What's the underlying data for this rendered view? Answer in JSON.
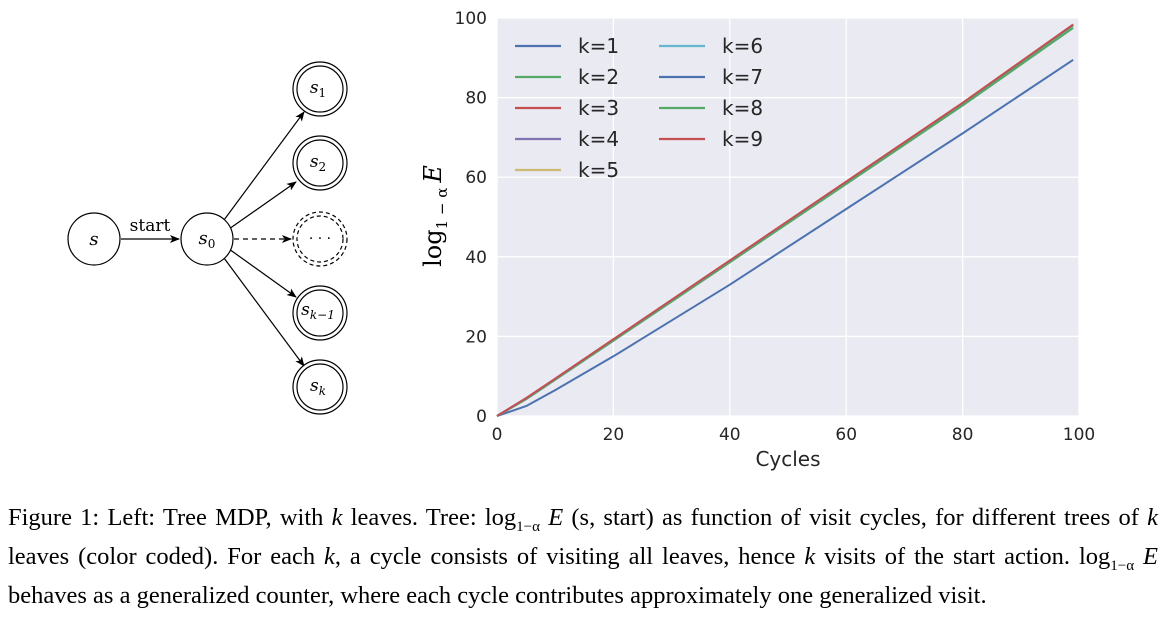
{
  "diagram": {
    "nodes": {
      "s": "s",
      "s0_base": "s",
      "s0_sub": "0",
      "s1_base": "s",
      "s1_sub": "1",
      "s2_base": "s",
      "s2_sub": "2",
      "dots": "· · ·",
      "sk1_base": "s",
      "sk1_sub": "k−1",
      "sk_base": "s",
      "sk_sub": "k"
    },
    "edge_label": "start"
  },
  "chart": {
    "xlabel": "Cycles",
    "ylabel_base": "log",
    "ylabel_sub": "1 − α",
    "ylabel_var": "E",
    "xticks": [
      "0",
      "20",
      "40",
      "60",
      "80",
      "100"
    ],
    "yticks": [
      "0",
      "20",
      "40",
      "60",
      "80",
      "100"
    ]
  },
  "chart_data": {
    "type": "line",
    "xlim": [
      0,
      100
    ],
    "ylim": [
      0,
      100
    ],
    "xlabel": "Cycles",
    "ylabel": "log_{1−α} E",
    "grid": true,
    "legend_position": "top-left",
    "series": [
      {
        "name": "k=1",
        "color": "#4c72b0",
        "x": [
          0,
          5,
          10,
          20,
          40,
          60,
          80,
          99
        ],
        "y": [
          0,
          2.5,
          6.5,
          15,
          33,
          52,
          71,
          89.5
        ]
      },
      {
        "name": "k=2",
        "color": "#55a868",
        "x": [
          0,
          5,
          10,
          20,
          40,
          60,
          80,
          99
        ],
        "y": [
          0,
          4.2,
          9.1,
          18.9,
          38.6,
          58.3,
          78,
          97.5
        ]
      },
      {
        "name": "k=3",
        "color": "#c44e52",
        "x": [
          0,
          5,
          10,
          20,
          40,
          60,
          80,
          99
        ],
        "y": [
          0,
          4.4,
          9.3,
          19.2,
          39,
          58.8,
          78.5,
          98.2
        ]
      },
      {
        "name": "k=4",
        "color": "#8172b2",
        "x": [
          0,
          5,
          10,
          20,
          40,
          60,
          80,
          99
        ],
        "y": [
          0,
          4.4,
          9.3,
          19.2,
          39,
          58.8,
          78.5,
          98.2
        ]
      },
      {
        "name": "k=5",
        "color": "#ccb974",
        "x": [
          0,
          5,
          10,
          20,
          40,
          60,
          80,
          99
        ],
        "y": [
          0,
          4.4,
          9.3,
          19.2,
          39,
          58.8,
          78.5,
          98.2
        ]
      },
      {
        "name": "k=6",
        "color": "#64b5cd",
        "x": [
          0,
          5,
          10,
          20,
          40,
          60,
          80,
          99
        ],
        "y": [
          0,
          4.4,
          9.3,
          19.2,
          39,
          58.8,
          78.5,
          98.2
        ]
      },
      {
        "name": "k=7",
        "color": "#4c72b0",
        "x": [
          0,
          5,
          10,
          20,
          40,
          60,
          80,
          99
        ],
        "y": [
          0,
          4.4,
          9.3,
          19.2,
          39,
          58.8,
          78.5,
          98.2
        ]
      },
      {
        "name": "k=8",
        "color": "#55a868",
        "x": [
          0,
          5,
          10,
          20,
          40,
          60,
          80,
          99
        ],
        "y": [
          0,
          4.4,
          9.3,
          19.2,
          39,
          58.8,
          78.5,
          98.2
        ]
      },
      {
        "name": "k=9",
        "color": "#c44e52",
        "x": [
          0,
          5,
          10,
          20,
          40,
          60,
          80,
          99
        ],
        "y": [
          0,
          4.5,
          9.4,
          19.3,
          39.1,
          58.9,
          78.7,
          98.4
        ]
      }
    ]
  },
  "caption": {
    "prefix": "Figure 1: Left: Tree MDP, with ",
    "k1": "k",
    "t1": " leaves. Tree: ",
    "log1": "log",
    "sub1": "1−α",
    "E1": " E",
    "args": " (s, start)",
    "t2": " as function of visit cycles, for different trees of ",
    "k2": "k",
    "t3": " leaves (color coded). For each ",
    "k3": "k",
    "t4": ", a cycle consists of visiting all leaves, hence ",
    "k4": "k",
    "t5": " visits of the start action. ",
    "log2": "log",
    "sub2": "1−α",
    "E2": " E",
    "t6": " behaves as a generalized counter, where each cycle contributes approximately one generalized visit."
  }
}
